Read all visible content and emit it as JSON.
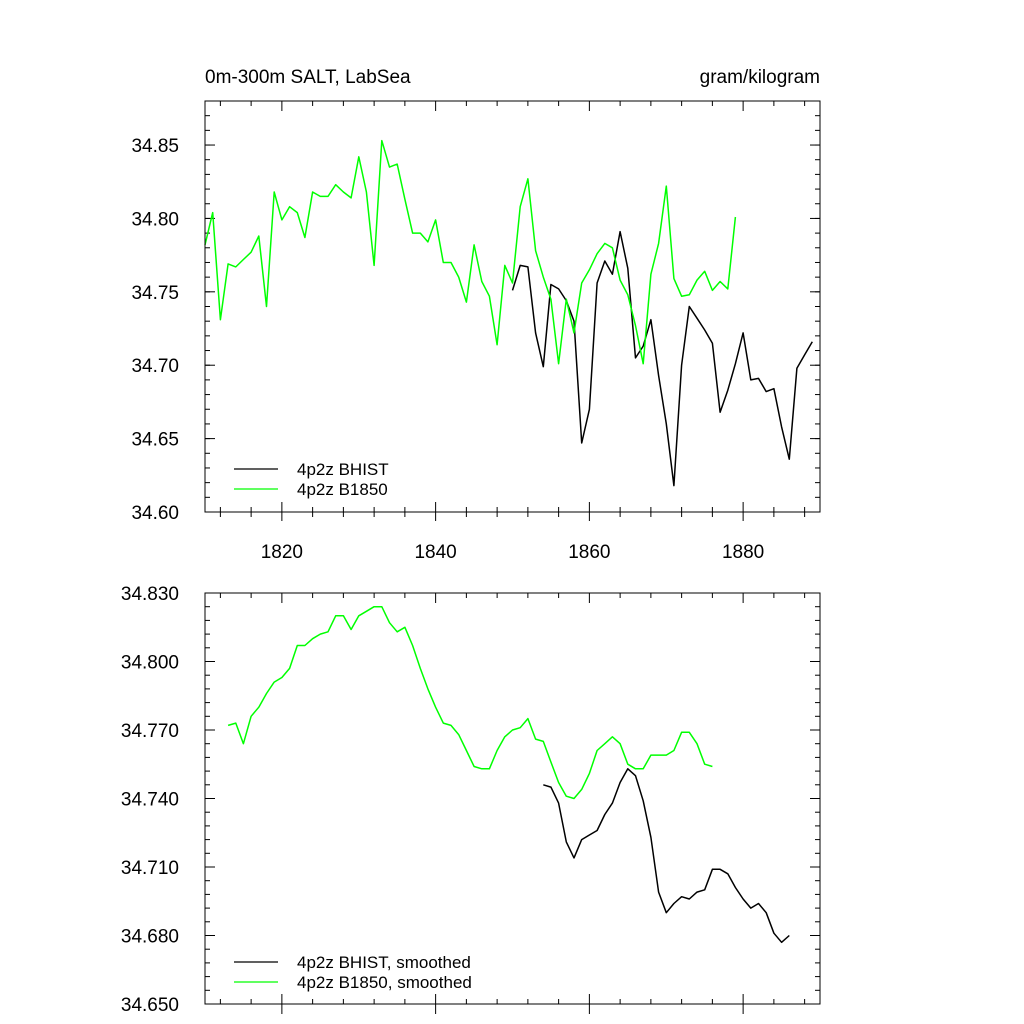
{
  "chart_data": [
    {
      "type": "line",
      "title_left": "0m-300m SALT, LabSea",
      "title_right": "gram/kilogram",
      "xlim": [
        1810,
        1890
      ],
      "ylim": [
        34.6,
        34.88
      ],
      "x_ticks": [
        1820,
        1840,
        1860,
        1880
      ],
      "y_ticks": [
        "34.60",
        "34.65",
        "34.70",
        "34.75",
        "34.80",
        "34.85"
      ],
      "legend": [
        "4p2z BHIST",
        "4p2z B1850"
      ],
      "series": [
        {
          "name": "4p2z BHIST",
          "color": "#000000",
          "x": [
            1850,
            1851,
            1852,
            1853,
            1854,
            1855,
            1856,
            1857,
            1858,
            1859,
            1860,
            1861,
            1862,
            1863,
            1864,
            1865,
            1866,
            1867,
            1868,
            1869,
            1870,
            1871,
            1872,
            1873,
            1874,
            1875,
            1876,
            1877,
            1878,
            1879,
            1880,
            1881,
            1882,
            1883,
            1884,
            1885,
            1886,
            1887,
            1888,
            1889
          ],
          "values": [
            34.751,
            34.768,
            34.767,
            34.722,
            34.699,
            34.755,
            34.752,
            34.744,
            34.73,
            34.647,
            34.67,
            34.756,
            34.771,
            34.762,
            34.791,
            34.766,
            34.705,
            34.713,
            34.731,
            34.693,
            34.66,
            34.618,
            34.7,
            34.74,
            34.732,
            34.724,
            34.715,
            34.668,
            34.683,
            34.701,
            34.722,
            34.69,
            34.691,
            34.682,
            34.684,
            34.658,
            34.636,
            34.698,
            34.707,
            34.716
          ]
        },
        {
          "name": "4p2z B1850",
          "color": "#00ff00",
          "x": [
            1810,
            1811,
            1812,
            1813,
            1814,
            1815,
            1816,
            1817,
            1818,
            1819,
            1820,
            1821,
            1822,
            1823,
            1824,
            1825,
            1826,
            1827,
            1828,
            1829,
            1830,
            1831,
            1832,
            1833,
            1834,
            1835,
            1836,
            1837,
            1838,
            1839,
            1840,
            1841,
            1842,
            1843,
            1844,
            1845,
            1846,
            1847,
            1848,
            1849,
            1850,
            1851,
            1852,
            1853,
            1854,
            1855,
            1856,
            1857,
            1858,
            1859,
            1860,
            1861,
            1862,
            1863,
            1864,
            1865,
            1866,
            1867,
            1868,
            1869,
            1870,
            1871,
            1872,
            1873,
            1874,
            1875,
            1876,
            1877,
            1878,
            1879
          ],
          "values": [
            34.782,
            34.804,
            34.731,
            34.769,
            34.767,
            34.772,
            34.777,
            34.788,
            34.74,
            34.818,
            34.799,
            34.808,
            34.804,
            34.787,
            34.818,
            34.815,
            34.815,
            34.823,
            34.818,
            34.814,
            34.842,
            34.818,
            34.768,
            34.853,
            34.835,
            34.837,
            34.813,
            34.79,
            34.79,
            34.784,
            34.799,
            34.77,
            34.77,
            34.76,
            34.743,
            34.782,
            34.757,
            34.747,
            34.714,
            34.768,
            34.756,
            34.808,
            34.827,
            34.778,
            34.76,
            34.745,
            34.701,
            34.745,
            34.722,
            34.756,
            34.765,
            34.776,
            34.783,
            34.78,
            34.758,
            34.748,
            34.727,
            34.701,
            34.762,
            34.783,
            34.822,
            34.759,
            34.747,
            34.748,
            34.758,
            34.764,
            34.751,
            34.757,
            34.752,
            34.801
          ]
        }
      ]
    },
    {
      "type": "line",
      "xlim": [
        1810,
        1890
      ],
      "ylim": [
        34.65,
        34.83
      ],
      "y_ticks": [
        "34.650",
        "34.680",
        "34.710",
        "34.740",
        "34.770",
        "34.800",
        "34.830"
      ],
      "legend": [
        "4p2z BHIST, smoothed",
        "4p2z B1850, smoothed"
      ],
      "series": [
        {
          "name": "4p2z BHIST, smoothed",
          "color": "#000000",
          "x": [
            1854,
            1855,
            1856,
            1857,
            1858,
            1859,
            1860,
            1861,
            1862,
            1863,
            1864,
            1865,
            1866,
            1867,
            1868,
            1869,
            1870,
            1871,
            1872,
            1873,
            1874,
            1875,
            1876,
            1877,
            1878,
            1879,
            1880,
            1881,
            1882,
            1883,
            1884,
            1885,
            1886
          ],
          "values": [
            34.746,
            34.745,
            34.738,
            34.721,
            34.714,
            34.722,
            34.724,
            34.726,
            34.733,
            34.738,
            34.747,
            34.753,
            34.75,
            34.739,
            34.723,
            34.699,
            34.69,
            34.694,
            34.697,
            34.696,
            34.699,
            34.7,
            34.709,
            34.709,
            34.707,
            34.701,
            34.696,
            34.692,
            34.694,
            34.69,
            34.681,
            34.677,
            34.68
          ]
        },
        {
          "name": "4p2z B1850, smoothed",
          "color": "#00ff00",
          "x": [
            1813,
            1814,
            1815,
            1816,
            1817,
            1818,
            1819,
            1820,
            1821,
            1822,
            1823,
            1824,
            1825,
            1826,
            1827,
            1828,
            1829,
            1830,
            1831,
            1832,
            1833,
            1834,
            1835,
            1836,
            1837,
            1838,
            1839,
            1840,
            1841,
            1842,
            1843,
            1844,
            1845,
            1846,
            1847,
            1848,
            1849,
            1850,
            1851,
            1852,
            1853,
            1854,
            1855,
            1856,
            1857,
            1858,
            1859,
            1860,
            1861,
            1862,
            1863,
            1864,
            1865,
            1866,
            1867,
            1868,
            1869,
            1870,
            1871,
            1872,
            1873,
            1874,
            1875,
            1876
          ],
          "values": [
            34.772,
            34.773,
            34.764,
            34.776,
            34.78,
            34.786,
            34.791,
            34.793,
            34.797,
            34.807,
            34.807,
            34.81,
            34.812,
            34.813,
            34.82,
            34.82,
            34.814,
            34.82,
            34.822,
            34.824,
            34.824,
            34.817,
            34.813,
            34.815,
            34.807,
            34.797,
            34.788,
            34.78,
            34.773,
            34.772,
            34.768,
            34.761,
            34.754,
            34.753,
            34.753,
            34.761,
            34.767,
            34.77,
            34.771,
            34.775,
            34.766,
            34.765,
            34.756,
            34.747,
            34.741,
            34.74,
            34.744,
            34.751,
            34.761,
            34.764,
            34.767,
            34.764,
            34.755,
            34.753,
            34.753,
            34.759,
            34.759,
            34.759,
            34.761,
            34.769,
            34.769,
            34.764,
            34.755,
            34.754
          ]
        }
      ]
    }
  ]
}
